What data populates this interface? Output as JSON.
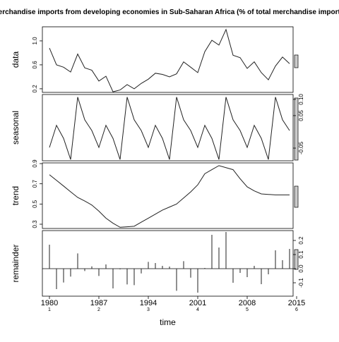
{
  "chart_data": [
    {
      "type": "line",
      "title": "Merchandise imports from developing economies in Sub-Saharan Africa (% of total merchandise imports)",
      "ylabel": "data",
      "yaxis_side": "left",
      "color": "#222222",
      "x": [
        1980,
        1981,
        1982,
        1983,
        1984,
        1985,
        1986,
        1987,
        1988,
        1989,
        1990,
        1991,
        1992,
        1993,
        1994,
        1995,
        1996,
        1997,
        1998,
        1999,
        2000,
        2001,
        2002,
        2003,
        2004,
        2005,
        2006,
        2007,
        2008,
        2009,
        2010,
        2011,
        2012,
        2013,
        2014
      ],
      "values": [
        0.88,
        0.6,
        0.56,
        0.48,
        0.78,
        0.55,
        0.51,
        0.33,
        0.41,
        0.15,
        0.18,
        0.27,
        0.2,
        0.29,
        0.36,
        0.46,
        0.44,
        0.4,
        0.45,
        0.65,
        0.56,
        0.47,
        0.82,
        1.01,
        0.93,
        1.19,
        0.76,
        0.72,
        0.54,
        0.65,
        0.47,
        0.35,
        0.58,
        0.73,
        0.62
      ],
      "xlim": [
        1979,
        2014.5
      ],
      "ylim": [
        0.14,
        1.235
      ],
      "yticks": [
        0.2,
        0.6,
        {
          "value": 1.0,
          "label": "1.0"
        }
      ]
    },
    {
      "type": "line",
      "ylabel": "seasonal",
      "yaxis_side": "right",
      "color": "#222222",
      "x": [
        1980,
        1981,
        1982,
        1983,
        1984,
        1985,
        1986,
        1987,
        1988,
        1989,
        1990,
        1991,
        1992,
        1993,
        1994,
        1995,
        1996,
        1997,
        1998,
        1999,
        2000,
        2001,
        2002,
        2003,
        2004,
        2005,
        2006,
        2007,
        2008,
        2009,
        2010,
        2011,
        2012,
        2013,
        2014
      ],
      "values": [
        -0.048,
        0.02,
        -0.02,
        -0.085,
        0.107,
        0.037,
        0.004,
        -0.048,
        0.02,
        -0.02,
        -0.085,
        0.107,
        0.037,
        0.004,
        -0.048,
        0.02,
        -0.02,
        -0.085,
        0.107,
        0.037,
        0.004,
        -0.048,
        0.02,
        -0.02,
        -0.085,
        0.107,
        0.037,
        0.004,
        -0.048,
        0.02,
        -0.02,
        -0.085,
        0.107,
        0.037,
        0.004
      ],
      "xlim": [
        1979,
        2014.5
      ],
      "ylim": [
        -0.089,
        0.115
      ],
      "yticks": [
        -0.05,
        0.05,
        {
          "value": 0.1,
          "label": "0.10"
        }
      ]
    },
    {
      "type": "line",
      "ylabel": "trend",
      "yaxis_side": "left",
      "color": "#222222",
      "x": [
        1980,
        1981,
        1982,
        1983,
        1984,
        1985,
        1986,
        1987,
        1988,
        1989,
        1990,
        1991,
        1992,
        1993,
        1994,
        1995,
        1996,
        1997,
        1998,
        1999,
        2000,
        2001,
        2002,
        2003,
        2004,
        2005,
        2006,
        2007,
        2008,
        2009,
        2010,
        2011,
        2012,
        2013,
        2014
      ],
      "values": [
        0.79,
        0.734,
        0.678,
        0.621,
        0.565,
        0.53,
        0.49,
        0.43,
        0.36,
        0.31,
        0.27,
        0.275,
        0.28,
        0.32,
        0.36,
        0.4,
        0.44,
        0.47,
        0.5,
        0.56,
        0.62,
        0.69,
        0.8,
        0.84,
        0.88,
        0.86,
        0.84,
        0.75,
        0.67,
        0.63,
        0.6,
        0.595,
        0.59,
        0.59,
        0.59
      ],
      "xlim": [
        1979,
        2014.5
      ],
      "ylim": [
        0.258,
        0.907
      ],
      "yticks": [
        0.3,
        0.5,
        0.7,
        0.9
      ]
    },
    {
      "type": "bar",
      "ylabel": "remainder",
      "yaxis_side": "right",
      "color": "#222222",
      "xlabel": "time",
      "x": [
        1980,
        1981,
        1982,
        1983,
        1984,
        1985,
        1986,
        1987,
        1988,
        1989,
        1990,
        1991,
        1992,
        1993,
        1994,
        1995,
        1996,
        1997,
        1998,
        1999,
        2000,
        2001,
        2002,
        2003,
        2004,
        2005,
        2006,
        2007,
        2008,
        2009,
        2010,
        2011,
        2012,
        2013,
        2014
      ],
      "values": [
        0.17,
        -0.145,
        -0.098,
        -0.056,
        0.108,
        -0.017,
        0.016,
        -0.052,
        0.03,
        -0.14,
        -0.005,
        -0.112,
        -0.117,
        -0.034,
        0.048,
        0.04,
        0.02,
        0.015,
        -0.157,
        0.053,
        -0.064,
        -0.17,
        0.005,
        0.24,
        0.15,
        0.26,
        -0.1,
        -0.03,
        -0.06,
        0.02,
        -0.11,
        -0.04,
        0.13,
        0.06,
        0.14
      ],
      "xlim": [
        1979,
        2014.5
      ],
      "ylim": [
        -0.195,
        0.27
      ],
      "yticks": [
        {
          "value": -0.1,
          "label": "-0.1"
        },
        {
          "value": 0.0,
          "label": "0.0"
        },
        0.1,
        0.2
      ],
      "xticks": [
        1980,
        1987,
        1994,
        2001,
        2008,
        2015
      ],
      "cycle_labels": [
        "1",
        "2",
        "3",
        "4",
        "5",
        "6"
      ]
    }
  ]
}
